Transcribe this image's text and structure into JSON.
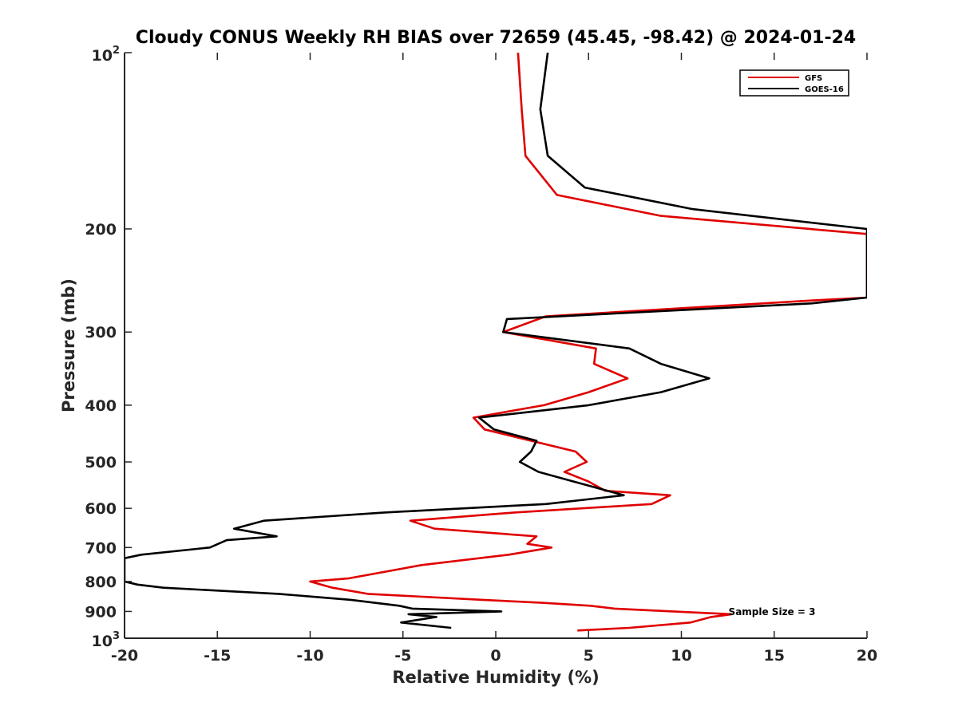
{
  "chart_data": {
    "type": "line",
    "title": "Cloudy CONUS Weekly RH BIAS over 72659 (45.45, -98.42) @ 2024-01-24",
    "xlabel": "Relative Humidity (%)",
    "ylabel": "Pressure (mb)",
    "xlim": [
      -20,
      20
    ],
    "ylim": [
      100,
      1000
    ],
    "y_scale": "log",
    "y_reversed": true,
    "grid": false,
    "legend_position": "top-right",
    "x_ticks": [
      "-20",
      "-15",
      "-10",
      "-5",
      "0",
      "5",
      "10",
      "15",
      "20"
    ],
    "y_ticks": [
      "200",
      "300",
      "400",
      "500",
      "600",
      "700",
      "800",
      "900"
    ],
    "y_tick_top": {
      "base": "10",
      "exp": "2"
    },
    "y_tick_bottom": {
      "base": "10",
      "exp": "3"
    },
    "annotation": "Sample Size = 3",
    "series": [
      {
        "name": "GFS",
        "color": "#e00000",
        "points": [
          [
            1.2,
            100
          ],
          [
            1.4,
            125
          ],
          [
            1.6,
            150
          ],
          [
            3.3,
            175
          ],
          [
            8.9,
            190
          ],
          [
            20.0,
            204
          ],
          [
            20.0,
            262
          ],
          [
            17.0,
            265
          ],
          [
            2.7,
            282
          ],
          [
            0.4,
            300
          ],
          [
            5.4,
            320
          ],
          [
            5.3,
            340
          ],
          [
            7.1,
            360
          ],
          [
            5.0,
            380
          ],
          [
            2.6,
            400
          ],
          [
            -1.2,
            420
          ],
          [
            -0.6,
            440
          ],
          [
            4.3,
            480
          ],
          [
            4.9,
            500
          ],
          [
            3.7,
            520
          ],
          [
            5.0,
            540
          ],
          [
            5.9,
            560
          ],
          [
            9.4,
            570
          ],
          [
            8.4,
            590
          ],
          [
            1.0,
            610
          ],
          [
            -4.6,
            630
          ],
          [
            -3.3,
            650
          ],
          [
            2.2,
            670
          ],
          [
            1.7,
            690
          ],
          [
            3.0,
            700
          ],
          [
            0.7,
            720
          ],
          [
            -4.0,
            750
          ],
          [
            -7.9,
            790
          ],
          [
            -10.0,
            800
          ],
          [
            -8.8,
            820
          ],
          [
            -6.9,
            840
          ],
          [
            -0.7,
            860
          ],
          [
            2.5,
            870
          ],
          [
            5.1,
            880
          ],
          [
            6.4,
            890
          ],
          [
            12.7,
            910
          ],
          [
            11.6,
            920
          ],
          [
            10.5,
            940
          ],
          [
            7.2,
            960
          ],
          [
            4.4,
            970
          ]
        ]
      },
      {
        "name": "GOES-16",
        "color": "#000000",
        "points": [
          [
            2.8,
            100
          ],
          [
            2.4,
            125
          ],
          [
            2.8,
            150
          ],
          [
            4.8,
            170
          ],
          [
            10.6,
            185
          ],
          [
            20.0,
            200
          ],
          [
            20.0,
            262
          ],
          [
            17.0,
            268
          ],
          [
            0.6,
            285
          ],
          [
            0.4,
            300
          ],
          [
            7.2,
            320
          ],
          [
            8.9,
            340
          ],
          [
            11.5,
            360
          ],
          [
            8.9,
            380
          ],
          [
            5.0,
            400
          ],
          [
            -0.9,
            420
          ],
          [
            -0.1,
            440
          ],
          [
            2.2,
            460
          ],
          [
            1.9,
            480
          ],
          [
            1.3,
            500
          ],
          [
            2.3,
            520
          ],
          [
            4.2,
            540
          ],
          [
            6.9,
            570
          ],
          [
            2.7,
            590
          ],
          [
            -6.0,
            610
          ],
          [
            -12.5,
            630
          ],
          [
            -14.1,
            650
          ],
          [
            -11.8,
            670
          ],
          [
            -14.5,
            680
          ],
          [
            -15.4,
            700
          ],
          [
            -19.1,
            720
          ],
          [
            -20.0,
            730
          ],
          [
            -20.0,
            800
          ],
          [
            -19.3,
            810
          ],
          [
            -17.9,
            820
          ],
          [
            -11.7,
            840
          ],
          [
            -7.8,
            860
          ],
          [
            -5.2,
            880
          ],
          [
            -4.5,
            890
          ],
          [
            0.3,
            900
          ],
          [
            -4.7,
            910
          ],
          [
            -3.2,
            920
          ],
          [
            -5.1,
            940
          ],
          [
            -2.4,
            960
          ]
        ]
      }
    ]
  }
}
